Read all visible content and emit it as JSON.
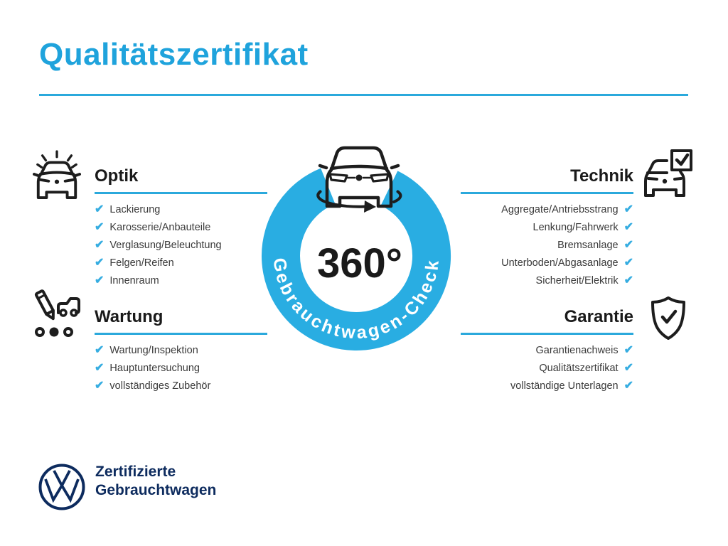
{
  "title": "Qualitätszertifikat",
  "badge": {
    "center_text": "360°",
    "ring_text": "Gebrauchtwagen-Check"
  },
  "sections": [
    {
      "id": "optik",
      "label": "Optik",
      "align": "left",
      "icon": "shiny-car-icon",
      "items": [
        "Lackierung",
        "Karosserie/Anbauteile",
        "Verglasung/Beleuchtung",
        "Felgen/Reifen",
        "Innenraum"
      ]
    },
    {
      "id": "technik",
      "label": "Technik",
      "align": "right",
      "icon": "car-checkbox-icon",
      "items": [
        "Aggregate/Antriebsstrang",
        "Lenkung/Fahrwerk",
        "Bremsanlage",
        "Unterboden/Abgasanlage",
        "Sicherheit/Elektrik"
      ]
    },
    {
      "id": "wartung",
      "label": "Wartung",
      "align": "left",
      "icon": "service-checklist-icon",
      "items": [
        "Wartung/Inspektion",
        "Hauptuntersuchung",
        "vollständiges Zubehör"
      ]
    },
    {
      "id": "garantie",
      "label": "Garantie",
      "align": "right",
      "icon": "shield-check-icon",
      "items": [
        "Garantienachweis",
        "Qualitätszertifikat",
        "vollständige Unterlagen"
      ]
    }
  ],
  "footer": {
    "line1": "Zertifizierte",
    "line2": "Gebrauchtwagen"
  },
  "check_glyph": "✔",
  "colors": {
    "accent": "#1FA3DC",
    "ring": "#29ADE2",
    "navy": "#0D2B5E",
    "heading": "#1A1A1A",
    "item_text": "#3A3A3A",
    "icon_stroke": "#1D1D1D"
  }
}
